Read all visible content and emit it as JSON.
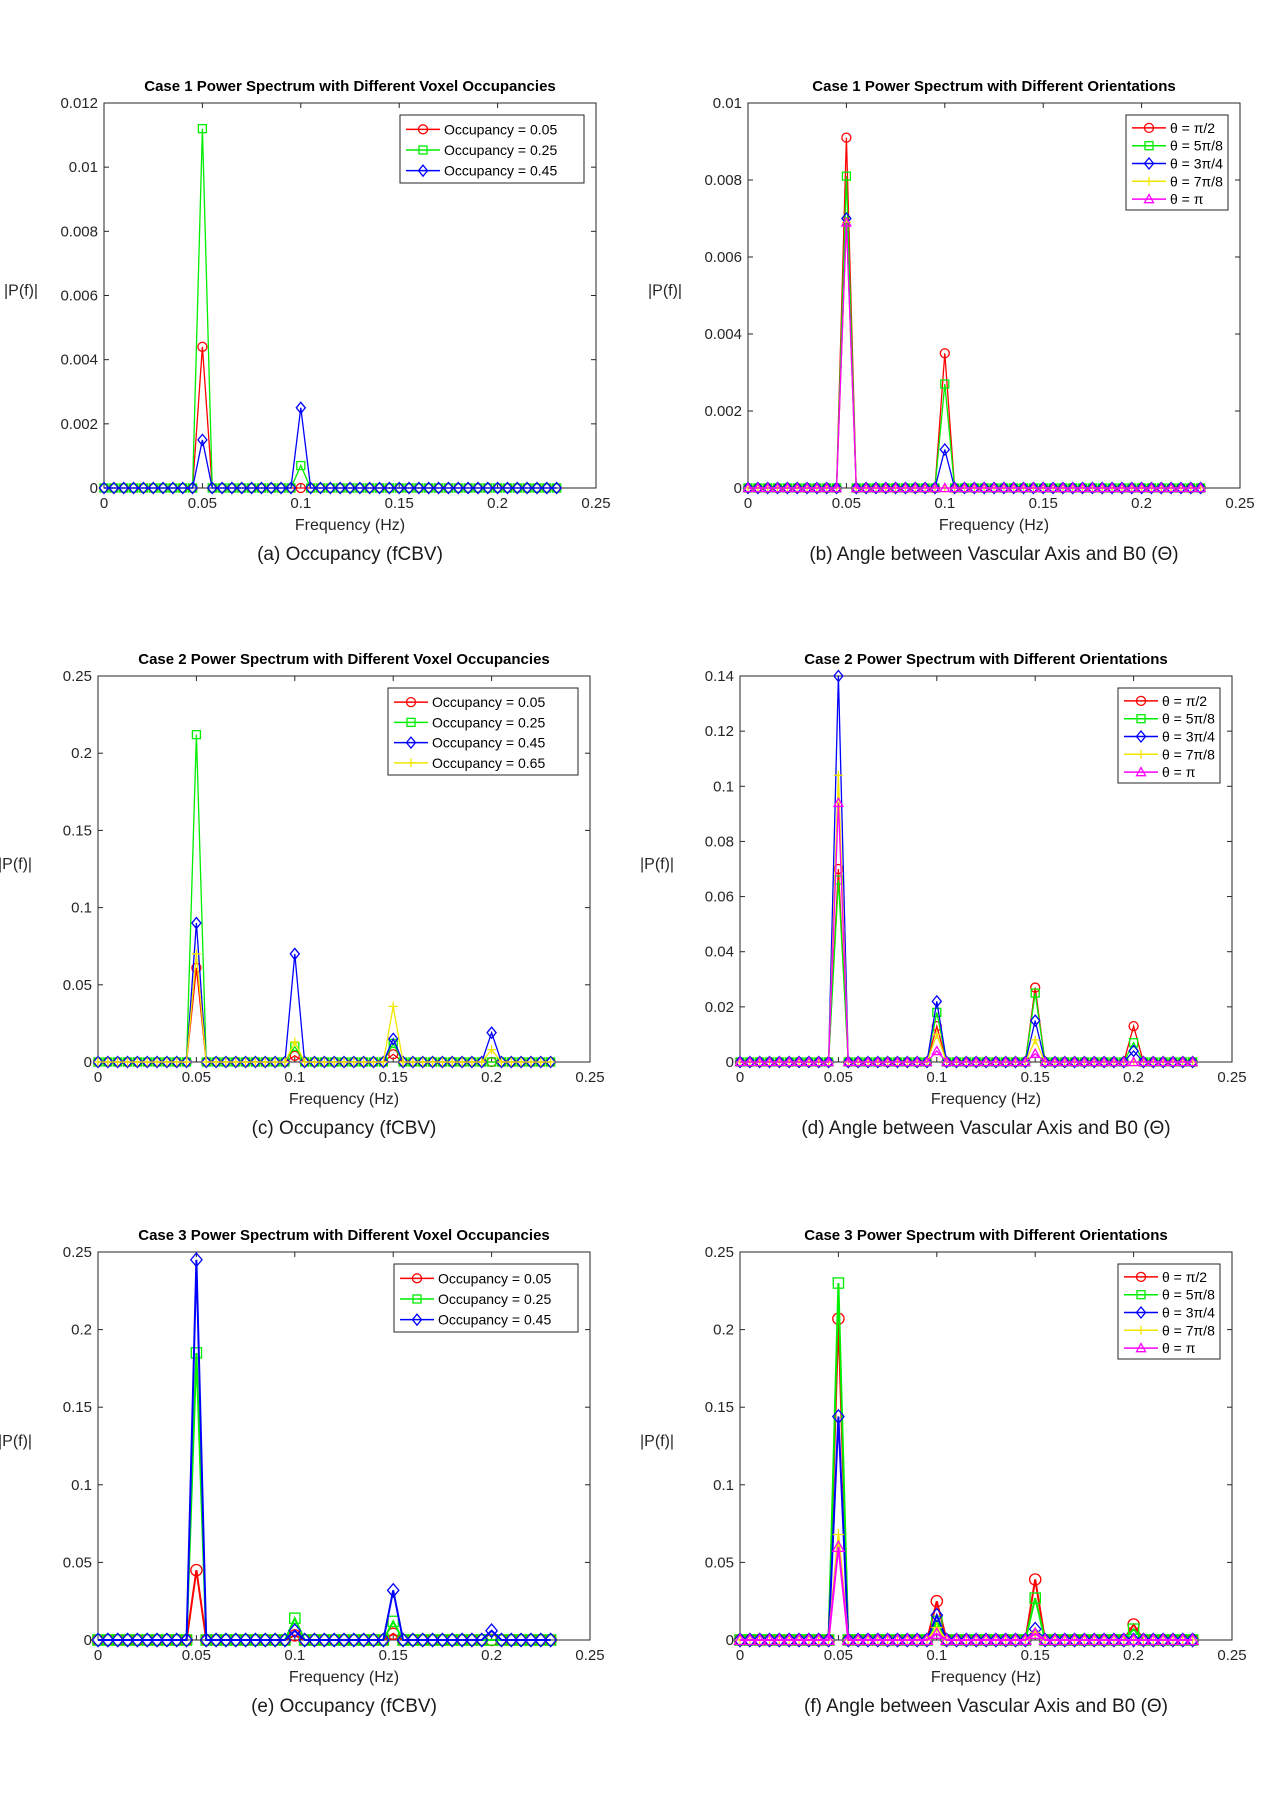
{
  "figure": {
    "description_panels": 6
  },
  "chart_data": [
    {
      "id": "a",
      "type": "line",
      "title": "Case 1 Power Spectrum with Different Voxel Occupancies",
      "caption": "(a) Occupancy (fCBV)",
      "xlabel": "Frequency (Hz)",
      "ylabel": "|P(f)|",
      "xlim": [
        0,
        0.25
      ],
      "ylim": [
        0,
        0.012
      ],
      "xticks": [
        "0",
        "0.05",
        "0.1",
        "0.15",
        "0.2",
        "0.25"
      ],
      "xtick_values": [
        0,
        0.05,
        0.1,
        0.15,
        0.2,
        0.25
      ],
      "yticks": [
        "0",
        "0.002",
        "0.004",
        "0.006",
        "0.008",
        "0.01",
        "0.012"
      ],
      "ytick_values": [
        0,
        0.002,
        0.004,
        0.006,
        0.008,
        0.01,
        0.012
      ],
      "legend_position": "top-right",
      "series": [
        {
          "name": "Occupancy = 0.05",
          "color": "#ff0000",
          "marker": "circle",
          "peaks": [
            [
              0.05,
              0.0044
            ]
          ]
        },
        {
          "name": "Occupancy = 0.25",
          "color": "#00ee00",
          "marker": "square",
          "peaks": [
            [
              0.05,
              0.0112
            ],
            [
              0.1,
              0.0007
            ]
          ]
        },
        {
          "name": "Occupancy = 0.45",
          "color": "#0000ff",
          "marker": "diamond",
          "peaks": [
            [
              0.05,
              0.0015
            ],
            [
              0.1,
              0.0025
            ]
          ]
        }
      ]
    },
    {
      "id": "b",
      "type": "line",
      "title": "Case 1 Power Spectrum with Different Orientations",
      "caption": "(b) Angle between Vascular Axis and B0 (Θ)",
      "xlabel": "Frequency (Hz)",
      "ylabel": "|P(f)|",
      "xlim": [
        0,
        0.25
      ],
      "ylim": [
        0,
        0.01
      ],
      "xticks": [
        "0",
        "0.05",
        "0.1",
        "0.15",
        "0.2",
        "0.25"
      ],
      "xtick_values": [
        0,
        0.05,
        0.1,
        0.15,
        0.2,
        0.25
      ],
      "yticks": [
        "0",
        "0.002",
        "0.004",
        "0.006",
        "0.008",
        "0.01"
      ],
      "ytick_values": [
        0,
        0.002,
        0.004,
        0.006,
        0.008,
        0.01
      ],
      "legend_position": "top-right",
      "series": [
        {
          "name": "θ = π/2",
          "color": "#ff0000",
          "marker": "circle",
          "peaks": [
            [
              0.05,
              0.0091
            ],
            [
              0.1,
              0.0035
            ]
          ]
        },
        {
          "name": "θ = 5π/8",
          "color": "#00ee00",
          "marker": "square",
          "peaks": [
            [
              0.05,
              0.0081
            ],
            [
              0.1,
              0.0027
            ]
          ]
        },
        {
          "name": "θ = 3π/4",
          "color": "#0000ff",
          "marker": "diamond",
          "peaks": [
            [
              0.05,
              0.007
            ],
            [
              0.1,
              0.001
            ]
          ]
        },
        {
          "name": "θ = 7π/8",
          "color": "#f2e600",
          "marker": "cross",
          "peaks": [
            [
              0.05,
              0.0069
            ]
          ]
        },
        {
          "name": "θ = π",
          "color": "#ff00ff",
          "marker": "triangle",
          "peaks": [
            [
              0.05,
              0.0069
            ]
          ]
        }
      ]
    },
    {
      "id": "c",
      "type": "line",
      "title": "Case 2 Power Spectrum with Different Voxel Occupancies",
      "caption": "(c) Occupancy (fCBV)",
      "xlabel": "Frequency (Hz)",
      "ylabel": "|P(f)|",
      "xlim": [
        0,
        0.25
      ],
      "ylim": [
        0,
        0.25
      ],
      "xticks": [
        "0",
        "0.05",
        "0.1",
        "0.15",
        "0.2",
        "0.25"
      ],
      "xtick_values": [
        0,
        0.05,
        0.1,
        0.15,
        0.2,
        0.25
      ],
      "yticks": [
        "0",
        "0.05",
        "0.1",
        "0.15",
        "0.2",
        "0.25"
      ],
      "ytick_values": [
        0,
        0.05,
        0.1,
        0.15,
        0.2,
        0.25
      ],
      "legend_position": "top-right",
      "series": [
        {
          "name": "Occupancy = 0.05",
          "color": "#ff0000",
          "marker": "circle",
          "peaks": [
            [
              0.05,
              0.061
            ],
            [
              0.1,
              0.004
            ],
            [
              0.15,
              0.005
            ]
          ]
        },
        {
          "name": "Occupancy = 0.25",
          "color": "#00ee00",
          "marker": "square",
          "peaks": [
            [
              0.05,
              0.212
            ],
            [
              0.1,
              0.01
            ],
            [
              0.15,
              0.012
            ]
          ]
        },
        {
          "name": "Occupancy = 0.45",
          "color": "#0000ff",
          "marker": "diamond",
          "peaks": [
            [
              0.05,
              0.09
            ],
            [
              0.1,
              0.07
            ],
            [
              0.15,
              0.015
            ],
            [
              0.2,
              0.019
            ]
          ]
        },
        {
          "name": "Occupancy = 0.65",
          "color": "#f2e600",
          "marker": "cross",
          "peaks": [
            [
              0.05,
              0.07
            ],
            [
              0.1,
              0.013
            ],
            [
              0.15,
              0.036
            ],
            [
              0.2,
              0.008
            ]
          ]
        }
      ]
    },
    {
      "id": "d",
      "type": "line",
      "title": "Case 2 Power Spectrum with Different Orientations",
      "caption": "(d) Angle between Vascular Axis and B0 (Θ)",
      "xlabel": "Frequency (Hz)",
      "ylabel": "|P(f)|",
      "xlim": [
        0,
        0.25
      ],
      "ylim": [
        0,
        0.14
      ],
      "xticks": [
        "0",
        "0.05",
        "0.1",
        "0.15",
        "0.2",
        "0.25"
      ],
      "xtick_values": [
        0,
        0.05,
        0.1,
        0.15,
        0.2,
        0.25
      ],
      "yticks": [
        "0",
        "0.02",
        "0.04",
        "0.06",
        "0.08",
        "0.1",
        "0.12",
        "0.14"
      ],
      "ytick_values": [
        0,
        0.02,
        0.04,
        0.06,
        0.08,
        0.1,
        0.12,
        0.14
      ],
      "legend_position": "top-right",
      "series": [
        {
          "name": "θ = π/2",
          "color": "#ff0000",
          "marker": "circle",
          "peaks": [
            [
              0.05,
              0.07
            ],
            [
              0.1,
              0.013
            ],
            [
              0.15,
              0.027
            ],
            [
              0.2,
              0.013
            ]
          ]
        },
        {
          "name": "θ = 5π/8",
          "color": "#00ee00",
          "marker": "square",
          "peaks": [
            [
              0.05,
              0.066
            ],
            [
              0.1,
              0.018
            ],
            [
              0.15,
              0.025
            ],
            [
              0.2,
              0.007
            ]
          ]
        },
        {
          "name": "θ = 3π/4",
          "color": "#0000ff",
          "marker": "diamond",
          "peaks": [
            [
              0.05,
              0.14
            ],
            [
              0.1,
              0.022
            ],
            [
              0.15,
              0.015
            ],
            [
              0.2,
              0.004
            ]
          ]
        },
        {
          "name": "θ = 7π/8",
          "color": "#f2e600",
          "marker": "cross",
          "peaks": [
            [
              0.05,
              0.104
            ],
            [
              0.1,
              0.01
            ],
            [
              0.15,
              0.008
            ]
          ]
        },
        {
          "name": "θ = π",
          "color": "#ff00ff",
          "marker": "triangle",
          "peaks": [
            [
              0.05,
              0.094
            ],
            [
              0.1,
              0.004
            ],
            [
              0.15,
              0.003
            ]
          ]
        }
      ]
    },
    {
      "id": "e",
      "type": "line",
      "title": "Case 3 Power Spectrum with Different Voxel Occupancies",
      "caption": "(e) Occupancy (fCBV)",
      "xlabel": "Frequency (Hz)",
      "ylabel": "|P(f)|",
      "xlim": [
        0,
        0.25
      ],
      "ylim": [
        0,
        0.25
      ],
      "xticks": [
        "0",
        "0.05",
        "0.1",
        "0.15",
        "0.2",
        "0.25"
      ],
      "xtick_values": [
        0,
        0.05,
        0.1,
        0.15,
        0.2,
        0.25
      ],
      "yticks": [
        "0",
        "0.05",
        "0.1",
        "0.15",
        "0.2",
        "0.25"
      ],
      "ytick_values": [
        0,
        0.05,
        0.1,
        0.15,
        0.2,
        0.25
      ],
      "legend_position": "top-right",
      "series": [
        {
          "name": "Occupancy = 0.05",
          "color": "#ff0000",
          "marker": "circle",
          "peaks": [
            [
              0.05,
              0.045
            ],
            [
              0.1,
              0.003
            ],
            [
              0.15,
              0.004
            ]
          ]
        },
        {
          "name": "Occupancy = 0.25",
          "color": "#00ee00",
          "marker": "square",
          "peaks": [
            [
              0.05,
              0.185
            ],
            [
              0.1,
              0.014
            ],
            [
              0.15,
              0.012
            ]
          ]
        },
        {
          "name": "Occupancy = 0.45",
          "color": "#0000ff",
          "marker": "diamond",
          "peaks": [
            [
              0.05,
              0.245
            ],
            [
              0.1,
              0.006
            ],
            [
              0.15,
              0.032
            ],
            [
              0.2,
              0.006
            ]
          ]
        }
      ]
    },
    {
      "id": "f",
      "type": "line",
      "title": "Case 3 Power Spectrum with Different Orientations",
      "caption": "(f) Angle between Vascular Axis and B0 (Θ)",
      "xlabel": "Frequency (Hz)",
      "ylabel": "|P(f)|",
      "xlim": [
        0,
        0.25
      ],
      "ylim": [
        0,
        0.25
      ],
      "xticks": [
        "0",
        "0.05",
        "0.1",
        "0.15",
        "0.2",
        "0.25"
      ],
      "xtick_values": [
        0,
        0.05,
        0.1,
        0.15,
        0.2,
        0.25
      ],
      "yticks": [
        "0",
        "0.05",
        "0.1",
        "0.15",
        "0.2",
        "0.25"
      ],
      "ytick_values": [
        0,
        0.05,
        0.1,
        0.15,
        0.2,
        0.25
      ],
      "legend_position": "top-right",
      "series": [
        {
          "name": "θ = π/2",
          "color": "#ff0000",
          "marker": "circle",
          "peaks": [
            [
              0.05,
              0.207
            ],
            [
              0.1,
              0.025
            ],
            [
              0.15,
              0.039
            ],
            [
              0.2,
              0.01
            ]
          ]
        },
        {
          "name": "θ = 5π/8",
          "color": "#00ee00",
          "marker": "square",
          "peaks": [
            [
              0.05,
              0.23
            ],
            [
              0.1,
              0.012
            ],
            [
              0.15,
              0.027
            ],
            [
              0.2,
              0.007
            ]
          ]
        },
        {
          "name": "θ = 3π/4",
          "color": "#0000ff",
          "marker": "diamond",
          "peaks": [
            [
              0.05,
              0.144
            ],
            [
              0.1,
              0.016
            ],
            [
              0.15,
              0.007
            ]
          ]
        },
        {
          "name": "θ = 7π/8",
          "color": "#f2e600",
          "marker": "cross",
          "peaks": [
            [
              0.05,
              0.068
            ],
            [
              0.1,
              0.008
            ],
            [
              0.15,
              0.005
            ]
          ]
        },
        {
          "name": "θ = π",
          "color": "#ff00ff",
          "marker": "triangle",
          "peaks": [
            [
              0.05,
              0.06
            ],
            [
              0.1,
              0.004
            ],
            [
              0.15,
              0.004
            ]
          ]
        }
      ]
    }
  ]
}
